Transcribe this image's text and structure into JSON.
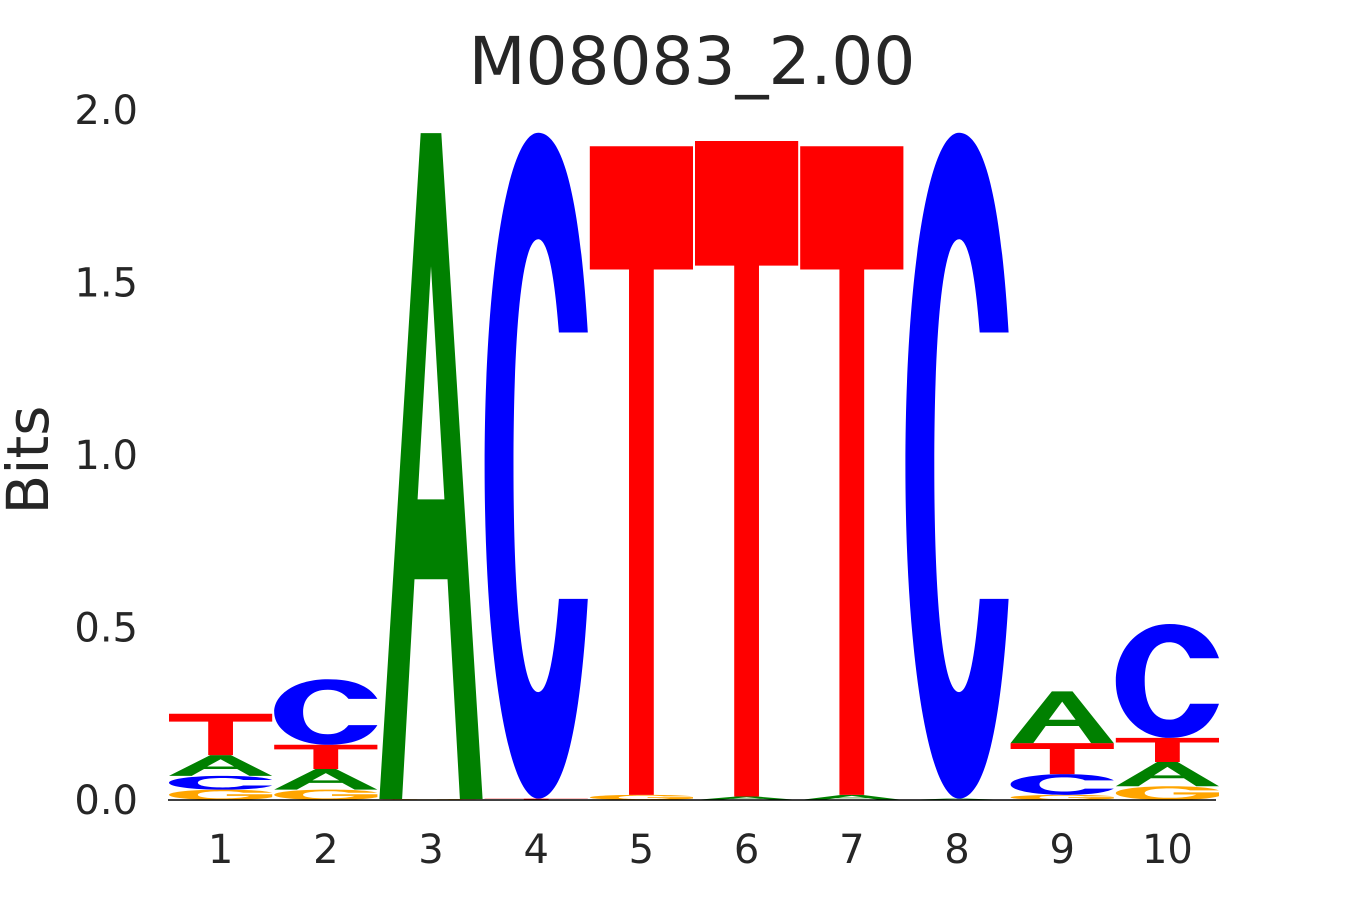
{
  "chart_data": {
    "type": "sequence-logo",
    "title": "M08083_2.00",
    "ylabel": "Bits",
    "xlabel": "",
    "ylim": [
      0,
      2.0
    ],
    "yticks": [
      "0.0",
      "0.5",
      "1.0",
      "1.5",
      "2.0"
    ],
    "ytick_values": [
      0,
      0.5,
      1.0,
      1.5,
      2.0
    ],
    "grid": false,
    "legend": "none",
    "colors": {
      "A": "#008000",
      "C": "#0000ff",
      "G": "#ffa500",
      "T": "#ff0000"
    },
    "positions": [
      {
        "label": "1",
        "letters": [
          {
            "base": "G",
            "bits": 0.03
          },
          {
            "base": "C",
            "bits": 0.04
          },
          {
            "base": "A",
            "bits": 0.06
          },
          {
            "base": "T",
            "bits": 0.12
          }
        ]
      },
      {
        "label": "2",
        "letters": [
          {
            "base": "G",
            "bits": 0.03
          },
          {
            "base": "A",
            "bits": 0.06
          },
          {
            "base": "T",
            "bits": 0.07
          },
          {
            "base": "C",
            "bits": 0.19
          }
        ]
      },
      {
        "label": "3",
        "letters": [
          {
            "base": "G",
            "bits": 0.003
          },
          {
            "base": "A",
            "bits": 1.93
          }
        ]
      },
      {
        "label": "4",
        "letters": [
          {
            "base": "T",
            "bits": 0.004
          },
          {
            "base": "C",
            "bits": 1.93
          }
        ]
      },
      {
        "label": "5",
        "letters": [
          {
            "base": "G",
            "bits": 0.015
          },
          {
            "base": "T",
            "bits": 1.88
          }
        ]
      },
      {
        "label": "6",
        "letters": [
          {
            "base": "A",
            "bits": 0.01
          },
          {
            "base": "T",
            "bits": 1.9
          }
        ]
      },
      {
        "label": "7",
        "letters": [
          {
            "base": "A",
            "bits": 0.015
          },
          {
            "base": "T",
            "bits": 1.88
          }
        ]
      },
      {
        "label": "8",
        "letters": [
          {
            "base": "A",
            "bits": 0.004
          },
          {
            "base": "C",
            "bits": 1.93
          }
        ]
      },
      {
        "label": "9",
        "letters": [
          {
            "base": "G",
            "bits": 0.015
          },
          {
            "base": "C",
            "bits": 0.06
          },
          {
            "base": "T",
            "bits": 0.09
          },
          {
            "base": "A",
            "bits": 0.15
          }
        ]
      },
      {
        "label": "10",
        "letters": [
          {
            "base": "G",
            "bits": 0.04
          },
          {
            "base": "A",
            "bits": 0.07
          },
          {
            "base": "T",
            "bits": 0.07
          },
          {
            "base": "C",
            "bits": 0.33
          }
        ]
      }
    ]
  }
}
